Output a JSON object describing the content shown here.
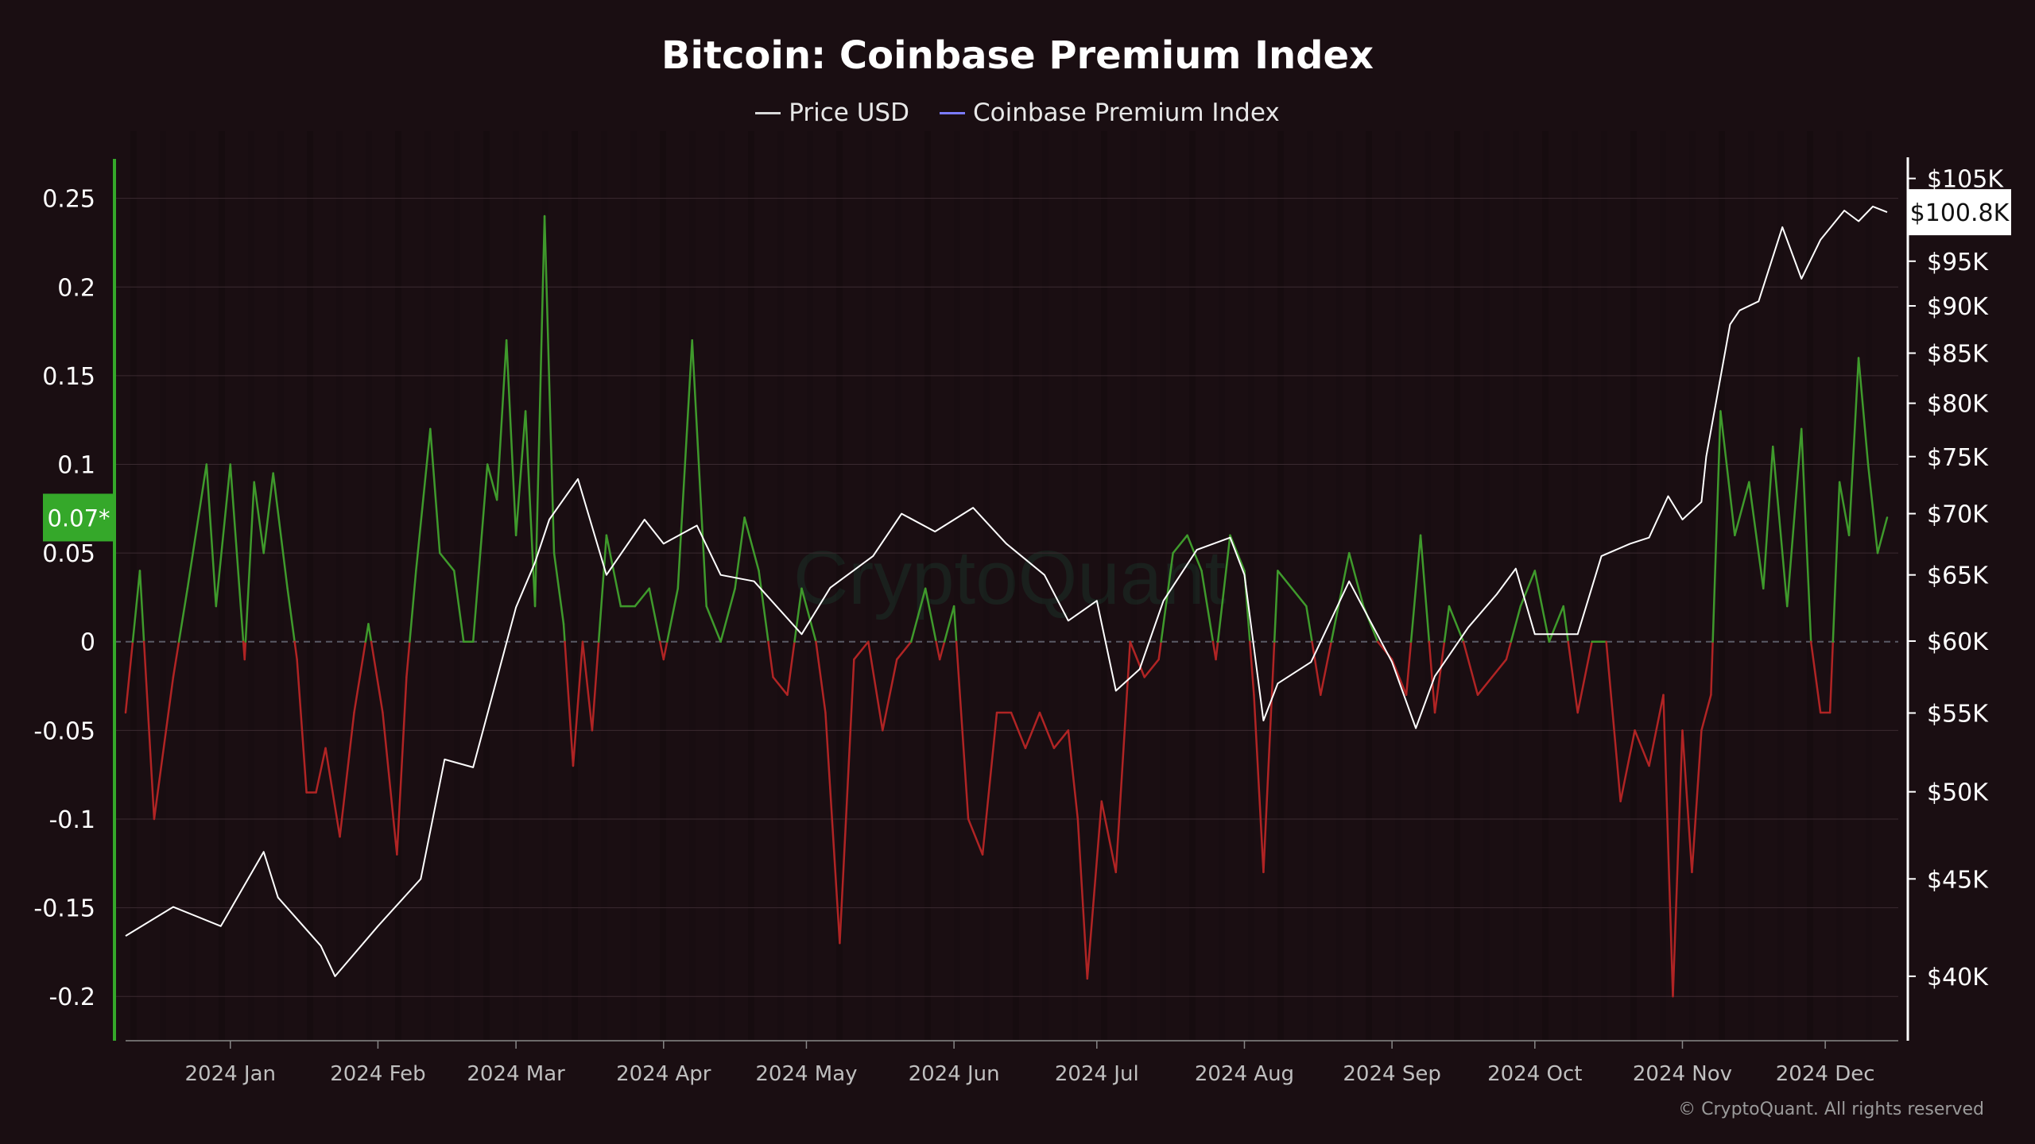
{
  "title": "Bitcoin: Coinbase Premium Index",
  "legend": [
    {
      "label": "Price USD",
      "color": "#d9d9d9"
    },
    {
      "label": "Coinbase Premium Index",
      "color": "#7b7bff"
    }
  ],
  "watermark": "CryptoQuant",
  "copyright": "© CryptoQuant. All rights reserved",
  "colors": {
    "background": "#1a0e12",
    "positive": "#3f9a2c",
    "negative": "#b02424",
    "price": "#ffffff",
    "badge_left": "#35a82a",
    "zero_line": "#5a5a66"
  },
  "current_values": {
    "premium_label": "0.07*",
    "premium": 0.07,
    "price_label": "$100.8K",
    "price": 100800
  },
  "chart_data": {
    "type": "line",
    "title": "Bitcoin: Coinbase Premium Index",
    "x_tick_labels": [
      "2024 Jan",
      "2024 Feb",
      "2024 Mar",
      "2024 Apr",
      "2024 May",
      "2024 Jun",
      "2024 Jul",
      "2024 Aug",
      "2024 Sep",
      "2024 Oct",
      "2024 Nov",
      "2024 Dec"
    ],
    "x_range": [
      "2023-12-10",
      "2024-12-14"
    ],
    "left_axis": {
      "label": "",
      "ylim": [
        -0.225,
        0.27
      ],
      "ticks": [
        0.25,
        0.2,
        0.15,
        0.1,
        0.05,
        0,
        -0.05,
        -0.1,
        -0.15,
        -0.2
      ],
      "tick_labels": [
        "0.25",
        "0.2",
        "0.15",
        "0.1",
        "0.05",
        "0",
        "-0.05",
        "-0.1",
        "-0.15",
        "-0.2"
      ]
    },
    "right_axis": {
      "label": "",
      "scale": "log",
      "ylim": [
        37000,
        107000
      ],
      "ticks": [
        105000,
        95000,
        90000,
        85000,
        80000,
        75000,
        70000,
        65000,
        60000,
        55000,
        50000,
        45000,
        40000
      ],
      "tick_labels": [
        "$105K",
        "$95K",
        "$90K",
        "$85K",
        "$80K",
        "$75K",
        "$70K",
        "$65K",
        "$60K",
        "$55K",
        "$50K",
        "$45K",
        "$40K"
      ]
    },
    "grid": true,
    "legend_position": "top-center",
    "series": [
      {
        "name": "Price USD",
        "axis": "right",
        "x": [
          "2023-12-10",
          "2023-12-20",
          "2023-12-30",
          "2024-01-08",
          "2024-01-11",
          "2024-01-20",
          "2024-01-23",
          "2024-02-01",
          "2024-02-10",
          "2024-02-15",
          "2024-02-21",
          "2024-03-01",
          "2024-03-05",
          "2024-03-08",
          "2024-03-14",
          "2024-03-20",
          "2024-03-28",
          "2024-04-01",
          "2024-04-08",
          "2024-04-13",
          "2024-04-20",
          "2024-04-30",
          "2024-05-06",
          "2024-05-15",
          "2024-05-21",
          "2024-05-28",
          "2024-06-05",
          "2024-06-12",
          "2024-06-20",
          "2024-06-25",
          "2024-07-01",
          "2024-07-05",
          "2024-07-10",
          "2024-07-15",
          "2024-07-22",
          "2024-07-29",
          "2024-08-01",
          "2024-08-05",
          "2024-08-08",
          "2024-08-15",
          "2024-08-23",
          "2024-09-01",
          "2024-09-06",
          "2024-09-10",
          "2024-09-17",
          "2024-09-23",
          "2024-09-27",
          "2024-10-01",
          "2024-10-10",
          "2024-10-15",
          "2024-10-21",
          "2024-10-25",
          "2024-10-29",
          "2024-11-01",
          "2024-11-05",
          "2024-11-06",
          "2024-11-11",
          "2024-11-13",
          "2024-11-17",
          "2024-11-22",
          "2024-11-26",
          "2024-11-30",
          "2024-12-05",
          "2024-12-08",
          "2024-12-11",
          "2024-12-14"
        ],
        "values": [
          42000,
          43500,
          42500,
          46500,
          44000,
          41500,
          40000,
          42500,
          45000,
          52000,
          51500,
          62500,
          66000,
          69500,
          73000,
          65000,
          69500,
          67500,
          69000,
          65000,
          64500,
          60500,
          64000,
          66500,
          70000,
          68500,
          70500,
          67500,
          65000,
          61500,
          63000,
          56500,
          58000,
          63000,
          67000,
          68000,
          65000,
          54500,
          57000,
          58500,
          64500,
          58500,
          54000,
          57500,
          61000,
          63500,
          65500,
          60500,
          60500,
          66500,
          67500,
          68000,
          71500,
          69500,
          71000,
          75000,
          88000,
          89500,
          90500,
          99000,
          93000,
          97500,
          101000,
          99700,
          101500,
          100800
        ]
      },
      {
        "name": "Coinbase Premium Index",
        "axis": "left",
        "x": [
          "2023-12-10",
          "2023-12-13",
          "2023-12-16",
          "2023-12-20",
          "2023-12-23",
          "2023-12-27",
          "2023-12-29",
          "2024-01-01",
          "2024-01-04",
          "2024-01-06",
          "2024-01-08",
          "2024-01-10",
          "2024-01-13",
          "2024-01-15",
          "2024-01-17",
          "2024-01-19",
          "2024-01-21",
          "2024-01-24",
          "2024-01-27",
          "2024-01-30",
          "2024-02-02",
          "2024-02-05",
          "2024-02-07",
          "2024-02-09",
          "2024-02-12",
          "2024-02-14",
          "2024-02-17",
          "2024-02-19",
          "2024-02-21",
          "2024-02-24",
          "2024-02-26",
          "2024-02-28",
          "2024-03-01",
          "2024-03-03",
          "2024-03-05",
          "2024-03-07",
          "2024-03-09",
          "2024-03-11",
          "2024-03-13",
          "2024-03-15",
          "2024-03-17",
          "2024-03-20",
          "2024-03-23",
          "2024-03-26",
          "2024-03-29",
          "2024-04-01",
          "2024-04-04",
          "2024-04-07",
          "2024-04-10",
          "2024-04-13",
          "2024-04-16",
          "2024-04-18",
          "2024-04-21",
          "2024-04-24",
          "2024-04-27",
          "2024-04-30",
          "2024-05-03",
          "2024-05-05",
          "2024-05-08",
          "2024-05-11",
          "2024-05-14",
          "2024-05-17",
          "2024-05-20",
          "2024-05-23",
          "2024-05-26",
          "2024-05-29",
          "2024-06-01",
          "2024-06-04",
          "2024-06-07",
          "2024-06-10",
          "2024-06-13",
          "2024-06-16",
          "2024-06-19",
          "2024-06-22",
          "2024-06-25",
          "2024-06-27",
          "2024-06-29",
          "2024-07-02",
          "2024-07-05",
          "2024-07-08",
          "2024-07-11",
          "2024-07-14",
          "2024-07-17",
          "2024-07-20",
          "2024-07-23",
          "2024-07-26",
          "2024-07-29",
          "2024-08-01",
          "2024-08-03",
          "2024-08-05",
          "2024-08-08",
          "2024-08-11",
          "2024-08-14",
          "2024-08-17",
          "2024-08-20",
          "2024-08-23",
          "2024-08-26",
          "2024-08-29",
          "2024-09-01",
          "2024-09-04",
          "2024-09-07",
          "2024-09-10",
          "2024-09-13",
          "2024-09-16",
          "2024-09-19",
          "2024-09-22",
          "2024-09-25",
          "2024-09-28",
          "2024-10-01",
          "2024-10-04",
          "2024-10-07",
          "2024-10-10",
          "2024-10-13",
          "2024-10-16",
          "2024-10-19",
          "2024-10-22",
          "2024-10-25",
          "2024-10-28",
          "2024-10-30",
          "2024-11-01",
          "2024-11-03",
          "2024-11-05",
          "2024-11-07",
          "2024-11-09",
          "2024-11-12",
          "2024-11-15",
          "2024-11-18",
          "2024-11-20",
          "2024-11-23",
          "2024-11-26",
          "2024-11-28",
          "2024-11-30",
          "2024-12-02",
          "2024-12-04",
          "2024-12-06",
          "2024-12-08",
          "2024-12-10",
          "2024-12-12",
          "2024-12-14"
        ],
        "values": [
          -0.04,
          0.04,
          -0.1,
          -0.02,
          0.03,
          0.1,
          0.02,
          0.1,
          -0.01,
          0.09,
          0.05,
          0.095,
          0.03,
          -0.01,
          -0.085,
          -0.085,
          -0.06,
          -0.11,
          -0.04,
          0.01,
          -0.04,
          -0.12,
          -0.02,
          0.04,
          0.12,
          0.05,
          0.04,
          0.0,
          0.0,
          0.1,
          0.08,
          0.17,
          0.06,
          0.13,
          0.02,
          0.24,
          0.05,
          0.01,
          -0.07,
          0.0,
          -0.05,
          0.06,
          0.02,
          0.02,
          0.03,
          -0.01,
          0.03,
          0.17,
          0.02,
          0.0,
          0.03,
          0.07,
          0.04,
          -0.02,
          -0.03,
          0.03,
          0.0,
          -0.04,
          -0.17,
          -0.01,
          0.0,
          -0.05,
          -0.01,
          0.0,
          0.03,
          -0.01,
          0.02,
          -0.1,
          -0.12,
          -0.04,
          -0.04,
          -0.06,
          -0.04,
          -0.06,
          -0.05,
          -0.1,
          -0.19,
          -0.09,
          -0.13,
          0.0,
          -0.02,
          -0.01,
          0.05,
          0.06,
          0.04,
          -0.01,
          0.06,
          0.04,
          -0.03,
          -0.13,
          0.04,
          0.03,
          0.02,
          -0.03,
          0.01,
          0.05,
          0.02,
          0.0,
          -0.01,
          -0.03,
          0.06,
          -0.04,
          0.02,
          0.0,
          -0.03,
          -0.02,
          -0.01,
          0.02,
          0.04,
          0.0,
          0.02,
          -0.04,
          0.0,
          0.0,
          -0.09,
          -0.05,
          -0.07,
          -0.03,
          -0.2,
          -0.05,
          -0.13,
          -0.05,
          -0.03,
          0.13,
          0.06,
          0.09,
          0.03,
          0.11,
          0.02,
          0.12,
          0.0,
          -0.04,
          -0.04,
          0.09,
          0.06,
          0.16,
          0.1,
          0.05,
          0.07
        ]
      }
    ]
  }
}
